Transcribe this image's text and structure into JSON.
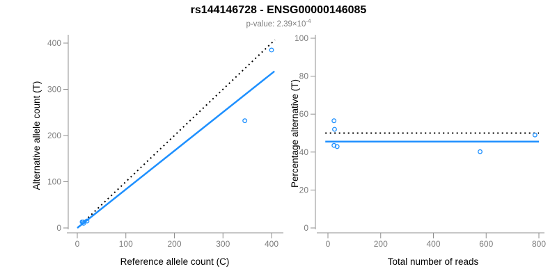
{
  "header": {
    "title": "rs144146728 - ENSG00000146085",
    "subtitle_prefix": "p-value: ",
    "subtitle_value": "2.39×10",
    "subtitle_exponent": "-4"
  },
  "colors": {
    "point_blue": "#1E90FF",
    "line_blue": "#1E90FF",
    "dotted_black": "#000000",
    "axis_line_gray": "#8f8f8f",
    "tick_text_gray": "#7d7d7d",
    "label_black": "#000000"
  },
  "chart_data": [
    {
      "type": "scatter",
      "panel": "left",
      "xlabel": "Reference allele count (C)",
      "ylabel": "Alternative allele count (T)",
      "xticks": [
        0,
        100,
        200,
        300,
        400
      ],
      "yticks": [
        0,
        100,
        200,
        300,
        400
      ],
      "xlim": [
        0,
        408
      ],
      "ylim": [
        0,
        408
      ],
      "grid": false,
      "legend": false,
      "point_style": "open-circle",
      "point_color": "#1E90FF",
      "points": [
        [
          10,
          13
        ],
        [
          12,
          13
        ],
        [
          13,
          10
        ],
        [
          20,
          15
        ],
        [
          345,
          232
        ],
        [
          400,
          385
        ]
      ],
      "lines": [
        {
          "name": "identity-line",
          "style": "dotted",
          "color": "#000000",
          "slope": 1,
          "intercept": 0,
          "x_range": [
            2,
            407
          ]
        },
        {
          "name": "fit-line",
          "style": "solid",
          "color": "#1E90FF",
          "slope": 0.835,
          "intercept": 0,
          "x_range": [
            0,
            406
          ]
        }
      ]
    },
    {
      "type": "scatter",
      "panel": "right",
      "xlabel": "Total number of reads",
      "ylabel": "Percentage alternative (T)",
      "xticks": [
        0,
        200,
        400,
        600,
        800
      ],
      "yticks": [
        0,
        20,
        40,
        60,
        80,
        100
      ],
      "xlim": [
        -10,
        810
      ],
      "ylim": [
        0,
        100
      ],
      "grid": false,
      "legend": false,
      "point_style": "open-circle",
      "point_color": "#1E90FF",
      "points": [
        [
          23,
          56.5
        ],
        [
          25,
          52
        ],
        [
          23,
          43.5
        ],
        [
          35,
          42.9
        ],
        [
          577,
          40.2
        ],
        [
          785,
          49
        ]
      ],
      "lines": [
        {
          "name": "fifty-percent-line",
          "style": "dotted",
          "color": "#000000",
          "y": 50,
          "x_range": [
            -10,
            800
          ]
        },
        {
          "name": "mean-line",
          "style": "solid",
          "color": "#1E90FF",
          "y": 45.5,
          "x_range": [
            -10,
            800
          ]
        }
      ]
    }
  ]
}
